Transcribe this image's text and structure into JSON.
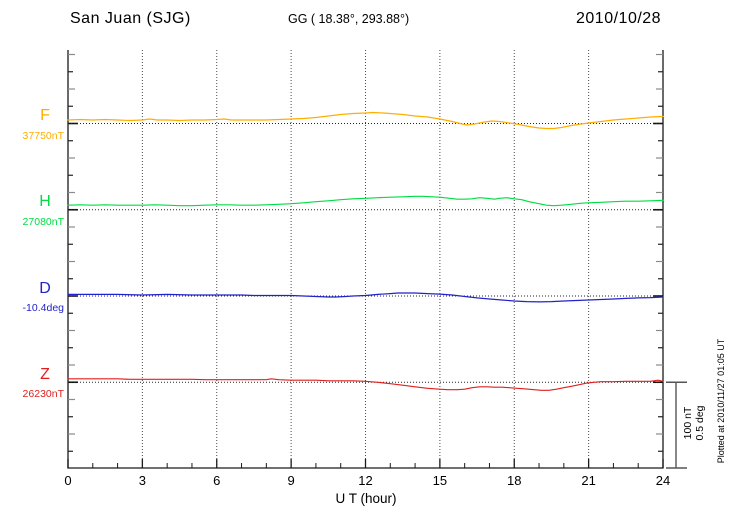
{
  "header": {
    "station": "San Juan (SJG)",
    "coordinates": "GG ( 18.38°, 293.88°)",
    "date": "2010/10/28"
  },
  "channels": [
    {
      "id": "F",
      "letter": "F",
      "base_value": "37750nT",
      "color": "#FFAE00"
    },
    {
      "id": "H",
      "letter": "H",
      "base_value": "27080nT",
      "color": "#00DD44"
    },
    {
      "id": "D",
      "letter": "D",
      "base_value": "-10.4deg",
      "color": "#2222CC"
    },
    {
      "id": "Z",
      "letter": "Z",
      "base_value": "26230nT",
      "color": "#E02020"
    }
  ],
  "x_axis": {
    "label": "U T (hour)",
    "ticks": [
      "0",
      "3",
      "6",
      "9",
      "12",
      "15",
      "18",
      "21",
      "24"
    ]
  },
  "scale_bar": {
    "line1": "100 nT",
    "line2": "0.5 deg"
  },
  "plotted_note": "Plotted at 2010/11/27 01:05 UT",
  "chart_data": {
    "type": "line",
    "title": "San Juan (SJG)",
    "subtitle": "GG ( 18.38°, 293.88°)",
    "date": "2010/10/28",
    "xlabel": "U T (hour)",
    "x_range": [
      0,
      24
    ],
    "x_ticks": [
      0,
      3,
      6,
      9,
      12,
      15,
      18,
      21,
      24
    ],
    "grid": "vertical dotted gridlines every 3 hours; dotted baseline through each channel's reference level",
    "legend_position": "left margin channel labels",
    "scale_divisions": {
      "nT_per_bar": 100,
      "deg_per_bar": 0.5
    },
    "series": [
      {
        "name": "F",
        "unit": "nT",
        "baseline_value": 37750,
        "offsets_are": "nT above stated baseline",
        "color": "#FFAE00",
        "points": [
          [
            0,
            4
          ],
          [
            0.5,
            4.6
          ],
          [
            1,
            4
          ],
          [
            1.5,
            4.6
          ],
          [
            2,
            4
          ],
          [
            2.5,
            3.4
          ],
          [
            3,
            4
          ],
          [
            3.3,
            5.2
          ],
          [
            3.6,
            4
          ],
          [
            4,
            4
          ],
          [
            4.5,
            3.4
          ],
          [
            5,
            4
          ],
          [
            5.5,
            4
          ],
          [
            6,
            4.6
          ],
          [
            6.3,
            5.2
          ],
          [
            6.6,
            4
          ],
          [
            7,
            4
          ],
          [
            7.5,
            4
          ],
          [
            8,
            4
          ],
          [
            8.5,
            4.6
          ],
          [
            9,
            5.2
          ],
          [
            9.5,
            5.7
          ],
          [
            10,
            6.9
          ],
          [
            10.5,
            8.6
          ],
          [
            11,
            10.3
          ],
          [
            11.5,
            11.5
          ],
          [
            12,
            12.1
          ],
          [
            12.3,
            12.6
          ],
          [
            12.7,
            12.1
          ],
          [
            13,
            11.5
          ],
          [
            13.5,
            10.3
          ],
          [
            14,
            8.6
          ],
          [
            14.5,
            7.5
          ],
          [
            15,
            5.2
          ],
          [
            15.5,
            2.3
          ],
          [
            15.9,
            -0.6
          ],
          [
            16.1,
            -1.7
          ],
          [
            16.4,
            -0.6
          ],
          [
            16.8,
            1.7
          ],
          [
            17.1,
            2.9
          ],
          [
            17.4,
            2.3
          ],
          [
            17.8,
            0.6
          ],
          [
            18.2,
            -1.1
          ],
          [
            18.6,
            -3.4
          ],
          [
            19,
            -5.2
          ],
          [
            19.3,
            -5.7
          ],
          [
            19.6,
            -5.7
          ],
          [
            19.9,
            -4.6
          ],
          [
            20.3,
            -2.3
          ],
          [
            20.7,
            -0.6
          ],
          [
            21,
            0.6
          ],
          [
            21.5,
            2.3
          ],
          [
            22,
            4
          ],
          [
            22.5,
            5.2
          ],
          [
            23,
            6.3
          ],
          [
            23.5,
            7.5
          ],
          [
            24,
            8
          ]
        ]
      },
      {
        "name": "H",
        "unit": "nT",
        "baseline_value": 27080,
        "offsets_are": "nT above stated baseline",
        "color": "#00DD44",
        "points": [
          [
            0,
            5.2
          ],
          [
            0.5,
            5.7
          ],
          [
            1,
            5.2
          ],
          [
            1.5,
            5.7
          ],
          [
            2,
            5.2
          ],
          [
            2.5,
            5.2
          ],
          [
            3,
            5.2
          ],
          [
            3.5,
            5.7
          ],
          [
            4,
            5.2
          ],
          [
            4.5,
            4.6
          ],
          [
            5,
            4.6
          ],
          [
            5.5,
            5.2
          ],
          [
            6,
            5.7
          ],
          [
            6.5,
            5.7
          ],
          [
            7,
            5.2
          ],
          [
            7.5,
            5.2
          ],
          [
            8,
            5.7
          ],
          [
            8.5,
            6.3
          ],
          [
            9,
            6.9
          ],
          [
            9.5,
            8
          ],
          [
            10,
            9.2
          ],
          [
            10.5,
            10.3
          ],
          [
            11,
            11.5
          ],
          [
            11.5,
            12.6
          ],
          [
            12,
            13.2
          ],
          [
            12.5,
            13.8
          ],
          [
            13,
            14.4
          ],
          [
            13.5,
            14.9
          ],
          [
            14,
            15.5
          ],
          [
            14.3,
            15.5
          ],
          [
            14.7,
            14.9
          ],
          [
            15,
            14.4
          ],
          [
            15.4,
            13.2
          ],
          [
            15.7,
            12.1
          ],
          [
            16,
            12.1
          ],
          [
            16.3,
            12.6
          ],
          [
            16.6,
            13.8
          ],
          [
            16.9,
            13.2
          ],
          [
            17.2,
            12.1
          ],
          [
            17.4,
            13.2
          ],
          [
            17.7,
            13.8
          ],
          [
            18,
            12.6
          ],
          [
            18.3,
            11.5
          ],
          [
            18.6,
            9.2
          ],
          [
            19,
            6.9
          ],
          [
            19.3,
            5.2
          ],
          [
            19.6,
            4.6
          ],
          [
            19.9,
            5.2
          ],
          [
            20.3,
            6.3
          ],
          [
            20.7,
            7.5
          ],
          [
            21,
            8
          ],
          [
            21.5,
            8.6
          ],
          [
            22,
            9.2
          ],
          [
            22.5,
            9.8
          ],
          [
            23,
            9.8
          ],
          [
            23.5,
            10.3
          ],
          [
            24,
            10.9
          ]
        ]
      },
      {
        "name": "D",
        "unit": "deg",
        "baseline_value": -10.4,
        "offsets_are": "deg above stated baseline",
        "color": "#2222CC",
        "points": [
          [
            0,
            0.009
          ],
          [
            1,
            0.009
          ],
          [
            2,
            0.009
          ],
          [
            3,
            0.006
          ],
          [
            4,
            0.009
          ],
          [
            5,
            0.006
          ],
          [
            6,
            0.006
          ],
          [
            7,
            0.006
          ],
          [
            7.5,
            0.003
          ],
          [
            8,
            0.003
          ],
          [
            9,
            0.003
          ],
          [
            9.5,
            0
          ],
          [
            10,
            -0.003
          ],
          [
            10.5,
            -0.006
          ],
          [
            10.8,
            -0.006
          ],
          [
            11.2,
            -0.003
          ],
          [
            11.5,
            0
          ],
          [
            12,
            0.003
          ],
          [
            12.5,
            0.009
          ],
          [
            13,
            0.014
          ],
          [
            13.3,
            0.017
          ],
          [
            13.7,
            0.017
          ],
          [
            14,
            0.017
          ],
          [
            14.5,
            0.014
          ],
          [
            15,
            0.011
          ],
          [
            15.5,
            0.006
          ],
          [
            16,
            -0.003
          ],
          [
            16.5,
            -0.011
          ],
          [
            17,
            -0.017
          ],
          [
            17.5,
            -0.023
          ],
          [
            18,
            -0.029
          ],
          [
            18.5,
            -0.032
          ],
          [
            19,
            -0.034
          ],
          [
            19.5,
            -0.032
          ],
          [
            20,
            -0.029
          ],
          [
            20.5,
            -0.026
          ],
          [
            21,
            -0.023
          ],
          [
            21.5,
            -0.02
          ],
          [
            22,
            -0.017
          ],
          [
            22.5,
            -0.014
          ],
          [
            23,
            -0.011
          ],
          [
            23.5,
            -0.009
          ],
          [
            24,
            -0.006
          ]
        ]
      },
      {
        "name": "Z",
        "unit": "nT",
        "baseline_value": 26230,
        "offsets_are": "nT above stated baseline",
        "color": "#E02020",
        "points": [
          [
            0,
            4
          ],
          [
            0.5,
            4
          ],
          [
            1,
            4
          ],
          [
            1.5,
            4
          ],
          [
            2,
            4
          ],
          [
            2.5,
            3.4
          ],
          [
            3,
            3.4
          ],
          [
            3.5,
            3.4
          ],
          [
            4,
            3.4
          ],
          [
            4.5,
            3.4
          ],
          [
            5,
            3.4
          ],
          [
            5.5,
            2.9
          ],
          [
            6,
            2.9
          ],
          [
            6.5,
            2.9
          ],
          [
            7,
            2.9
          ],
          [
            7.5,
            2.9
          ],
          [
            8,
            2.9
          ],
          [
            8.2,
            4
          ],
          [
            8.5,
            2.9
          ],
          [
            9,
            2.3
          ],
          [
            9.5,
            2.3
          ],
          [
            10,
            2.3
          ],
          [
            10.5,
            1.7
          ],
          [
            11,
            1.7
          ],
          [
            11.5,
            1.7
          ],
          [
            12,
            1.1
          ],
          [
            12.5,
            0
          ],
          [
            13,
            -1.7
          ],
          [
            13.5,
            -3.4
          ],
          [
            14,
            -5.2
          ],
          [
            14.5,
            -6.9
          ],
          [
            15,
            -8
          ],
          [
            15.3,
            -8.6
          ],
          [
            15.7,
            -8.6
          ],
          [
            16,
            -8
          ],
          [
            16.3,
            -6.3
          ],
          [
            16.6,
            -5.2
          ],
          [
            16.9,
            -5.2
          ],
          [
            17.2,
            -5.7
          ],
          [
            17.5,
            -5.7
          ],
          [
            17.8,
            -6.3
          ],
          [
            18.1,
            -6.9
          ],
          [
            18.4,
            -7.5
          ],
          [
            18.8,
            -8.6
          ],
          [
            19.1,
            -9.2
          ],
          [
            19.4,
            -9.2
          ],
          [
            19.7,
            -8
          ],
          [
            20,
            -6.3
          ],
          [
            20.3,
            -4.6
          ],
          [
            20.6,
            -2.9
          ],
          [
            20.9,
            -1.1
          ],
          [
            21.2,
            0
          ],
          [
            21.5,
            0.6
          ],
          [
            22,
            0.6
          ],
          [
            22.5,
            1.1
          ],
          [
            23,
            1.1
          ],
          [
            23.5,
            1.1
          ],
          [
            23.8,
            2.3
          ],
          [
            24,
            1.1
          ]
        ]
      }
    ]
  }
}
